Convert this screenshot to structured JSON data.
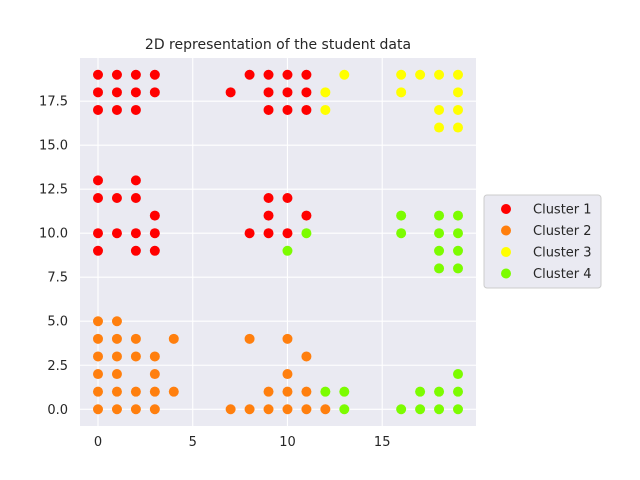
{
  "chart_data": {
    "type": "scatter",
    "title": "2D representation of the student data",
    "xlabel": "",
    "ylabel": "",
    "xlim": [
      -0.95,
      19.95
    ],
    "ylim": [
      -0.95,
      19.95
    ],
    "x_ticks": [
      0,
      5,
      10,
      15
    ],
    "y_ticks": [
      0.0,
      2.5,
      5.0,
      7.5,
      10.0,
      12.5,
      15.0,
      17.5
    ],
    "x_tick_labels": [
      "0",
      "5",
      "10",
      "15"
    ],
    "y_tick_labels": [
      "0.0",
      "2.5",
      "5.0",
      "7.5",
      "10.0",
      "12.5",
      "15.0",
      "17.5"
    ],
    "grid": true,
    "legend_position": "right",
    "series": [
      {
        "name": "Cluster 1",
        "color": "#ff0000",
        "points": [
          [
            0,
            19
          ],
          [
            1,
            19
          ],
          [
            2,
            19
          ],
          [
            3,
            19
          ],
          [
            0,
            18
          ],
          [
            1,
            18
          ],
          [
            2,
            18
          ],
          [
            3,
            18
          ],
          [
            0,
            17
          ],
          [
            1,
            17
          ],
          [
            2,
            17
          ],
          [
            8,
            19
          ],
          [
            9,
            19
          ],
          [
            10,
            19
          ],
          [
            11,
            19
          ],
          [
            7,
            18
          ],
          [
            9,
            18
          ],
          [
            10,
            18
          ],
          [
            11,
            18
          ],
          [
            9,
            17
          ],
          [
            10,
            17
          ],
          [
            11,
            17
          ],
          [
            0,
            13
          ],
          [
            2,
            13
          ],
          [
            0,
            12
          ],
          [
            1,
            12
          ],
          [
            2,
            12
          ],
          [
            3,
            11
          ],
          [
            0,
            10
          ],
          [
            1,
            10
          ],
          [
            2,
            10
          ],
          [
            3,
            10
          ],
          [
            0,
            9
          ],
          [
            2,
            9
          ],
          [
            3,
            9
          ],
          [
            9,
            12
          ],
          [
            10,
            12
          ],
          [
            9,
            11
          ],
          [
            11,
            11
          ],
          [
            8,
            10
          ],
          [
            9,
            10
          ],
          [
            10,
            10
          ]
        ]
      },
      {
        "name": "Cluster 2",
        "color": "#ff7f0e",
        "points": [
          [
            0,
            5
          ],
          [
            1,
            5
          ],
          [
            0,
            4
          ],
          [
            1,
            4
          ],
          [
            2,
            4
          ],
          [
            4,
            4
          ],
          [
            0,
            3
          ],
          [
            1,
            3
          ],
          [
            2,
            3
          ],
          [
            3,
            3
          ],
          [
            0,
            2
          ],
          [
            1,
            2
          ],
          [
            3,
            2
          ],
          [
            0,
            1
          ],
          [
            1,
            1
          ],
          [
            2,
            1
          ],
          [
            3,
            1
          ],
          [
            4,
            1
          ],
          [
            0,
            0
          ],
          [
            1,
            0
          ],
          [
            2,
            0
          ],
          [
            3,
            0
          ],
          [
            8,
            4
          ],
          [
            10,
            4
          ],
          [
            11,
            3
          ],
          [
            10,
            2
          ],
          [
            9,
            1
          ],
          [
            10,
            1
          ],
          [
            11,
            1
          ],
          [
            7,
            0
          ],
          [
            8,
            0
          ],
          [
            9,
            0
          ],
          [
            10,
            0
          ],
          [
            11,
            0
          ],
          [
            12,
            0
          ]
        ]
      },
      {
        "name": "Cluster 3",
        "color": "#ffff00",
        "points": [
          [
            13,
            19
          ],
          [
            12,
            18
          ],
          [
            12,
            17
          ],
          [
            16,
            19
          ],
          [
            17,
            19
          ],
          [
            18,
            19
          ],
          [
            19,
            19
          ],
          [
            16,
            18
          ],
          [
            19,
            18
          ],
          [
            18,
            17
          ],
          [
            19,
            17
          ],
          [
            18,
            16
          ],
          [
            19,
            16
          ]
        ]
      },
      {
        "name": "Cluster 4",
        "color": "#7cfc00",
        "points": [
          [
            11,
            10
          ],
          [
            10,
            9
          ],
          [
            16,
            11
          ],
          [
            18,
            11
          ],
          [
            19,
            11
          ],
          [
            16,
            10
          ],
          [
            18,
            10
          ],
          [
            19,
            10
          ],
          [
            18,
            9
          ],
          [
            19,
            9
          ],
          [
            18,
            8
          ],
          [
            19,
            8
          ],
          [
            12,
            1
          ],
          [
            13,
            1
          ],
          [
            13,
            0
          ],
          [
            16,
            0
          ],
          [
            17,
            1
          ],
          [
            18,
            1
          ],
          [
            19,
            1
          ],
          [
            17,
            0
          ],
          [
            18,
            0
          ],
          [
            19,
            0
          ],
          [
            19,
            2
          ]
        ]
      }
    ]
  }
}
